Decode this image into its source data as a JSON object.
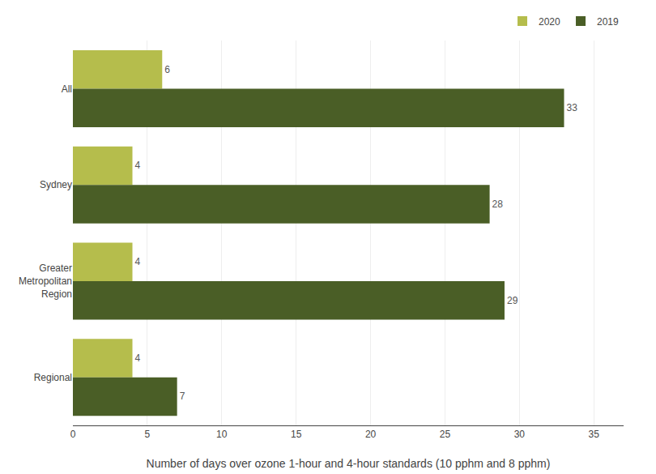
{
  "chart_data": {
    "type": "bar",
    "orientation": "horizontal",
    "categories": [
      "All",
      "Sydney",
      "Greater\nMetropolitan\nRegion",
      "Regional"
    ],
    "series": [
      {
        "name": "2020",
        "color": "#b5bd4c",
        "values": [
          6,
          4,
          4,
          4
        ]
      },
      {
        "name": "2019",
        "color": "#4a5e26",
        "values": [
          33,
          28,
          29,
          7
        ]
      }
    ],
    "xlabel": "Number of days over ozone 1-hour and 4-hour standards (10 pphm and 8 pphm)",
    "xlim": [
      0,
      37
    ],
    "xticks": [
      0,
      5,
      10,
      15,
      20,
      25,
      30,
      35
    ],
    "grid": true,
    "legend": "upper right",
    "data_labels": true
  }
}
